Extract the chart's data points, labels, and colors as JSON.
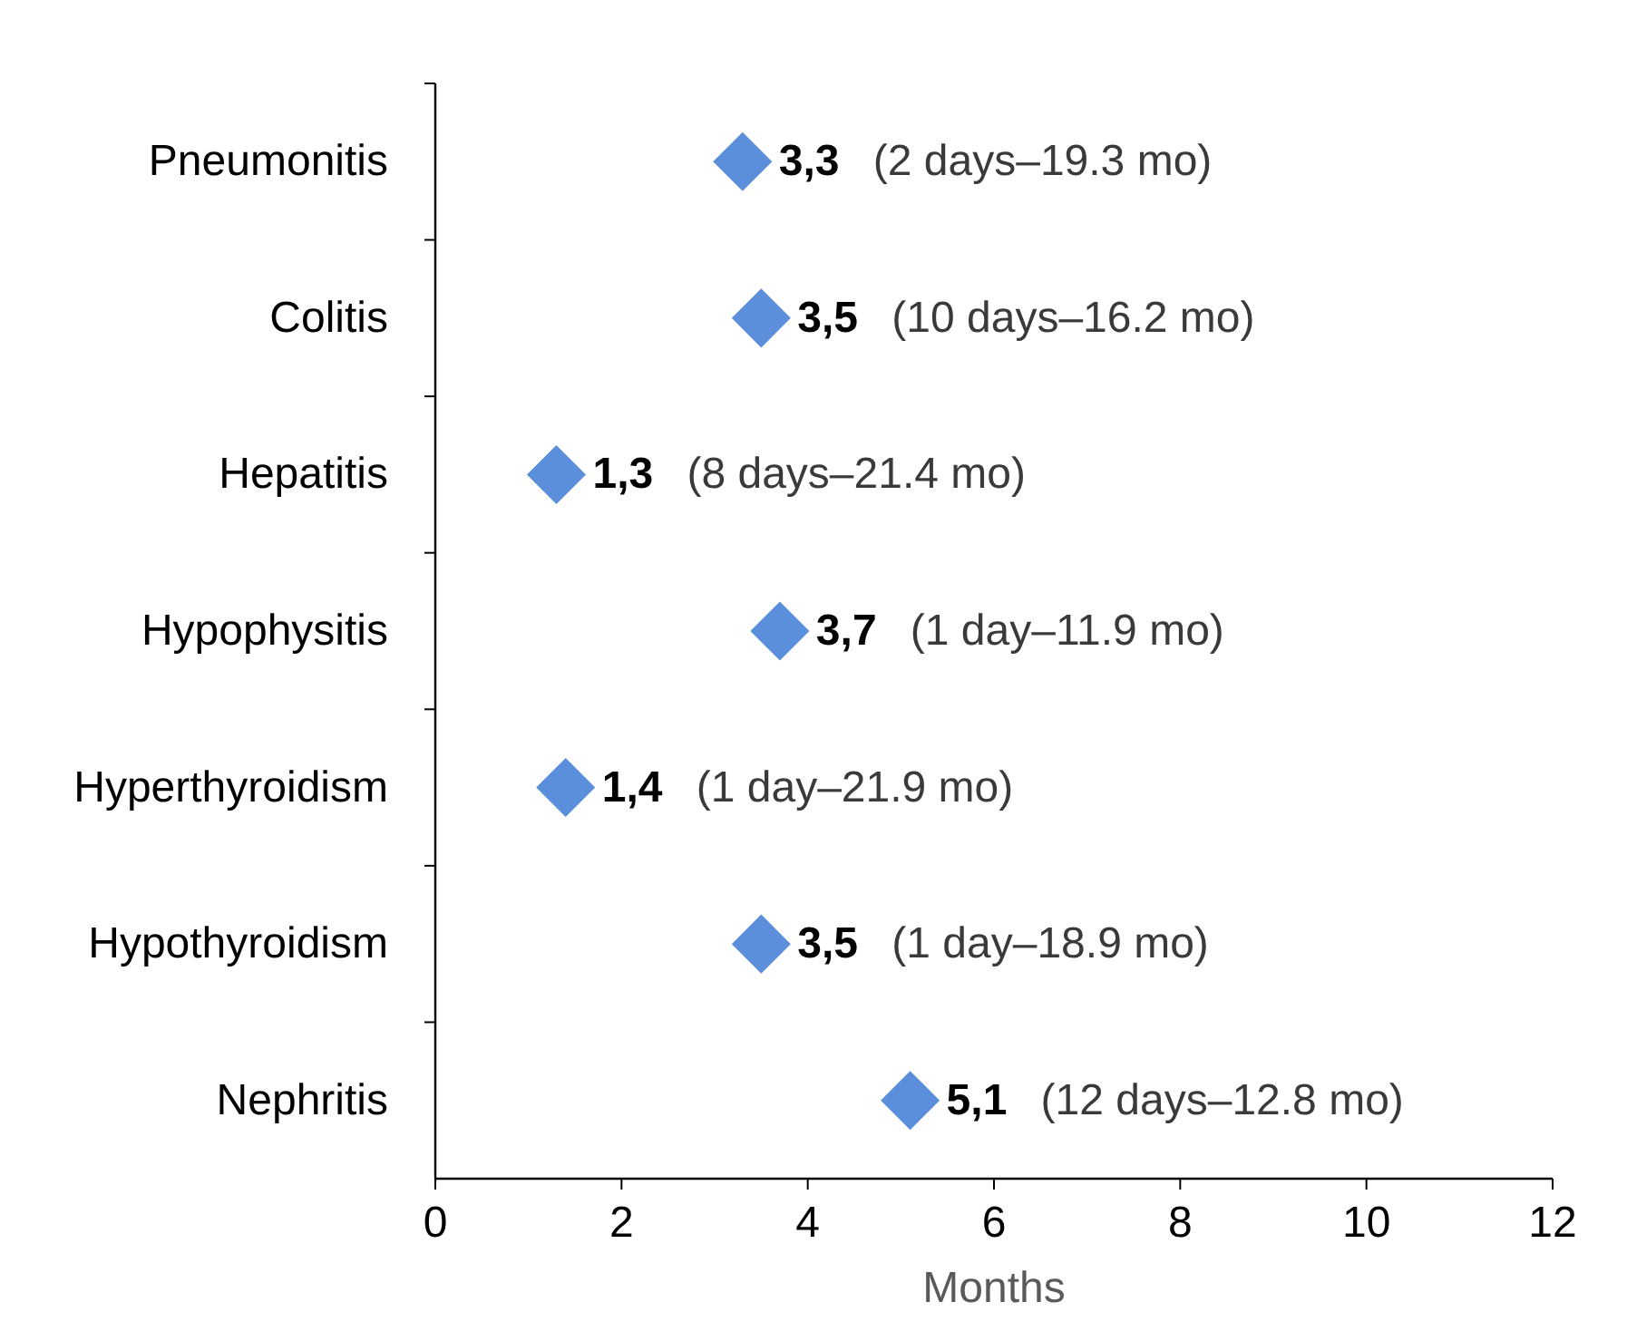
{
  "chart_data": {
    "type": "scatter",
    "orientation": "horizontal",
    "xlabel": "Months",
    "categories": [
      "Pneumonitis",
      "Colitis",
      "Hepatitis",
      "Hypophysitis",
      "Hyperthyroidism",
      "Hypothyroidism",
      "Nephritis"
    ],
    "values": [
      3.3,
      3.5,
      1.3,
      3.7,
      1.4,
      3.5,
      5.1
    ],
    "value_labels": [
      "3,3",
      "3,5",
      "1,3",
      "3,7",
      "1,4",
      "3,5",
      "5,1"
    ],
    "color": "#5b8fdc",
    "marker": "diamond",
    "xlim": [
      0,
      12
    ],
    "xticks": [
      0,
      2,
      4,
      6,
      8,
      10,
      12
    ],
    "grid": false,
    "annotations": [
      "(2 days–19.3 mo)",
      "(10 days–16.2 mo)",
      "(8 days–21.4 mo)",
      "(1 day–11.9 mo)",
      "(1 day–21.9 mo)",
      "(1 day–18.9 mo)",
      "(12 days–12.8 mo)"
    ]
  }
}
